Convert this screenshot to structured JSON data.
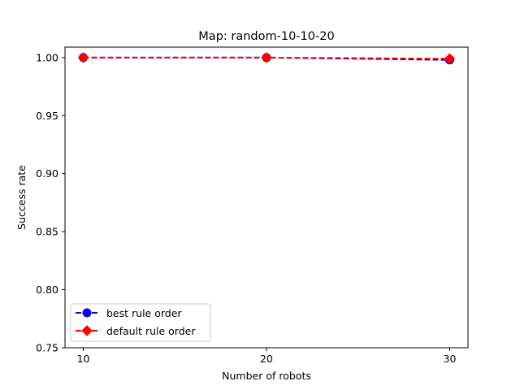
{
  "chart_data": {
    "type": "line",
    "title": "Map: random-10-10-20",
    "xlabel": "Number of robots",
    "ylabel": "Success rate",
    "x": [
      10,
      20,
      30
    ],
    "xlim": [
      9,
      31
    ],
    "ylim": [
      0.75,
      1.009
    ],
    "x_ticks": [
      "10",
      "20",
      "30"
    ],
    "y_ticks": [
      "0.75",
      "0.80",
      "0.85",
      "0.90",
      "0.95",
      "1.00"
    ],
    "y_tick_values": [
      0.75,
      0.8,
      0.85,
      0.9,
      0.95,
      1.0
    ],
    "grid": false,
    "legend_position": "lower-left",
    "series": [
      {
        "name": "best rule order",
        "values": [
          1.0,
          1.0,
          0.998
        ],
        "color": "#0000ff",
        "marker": "circle",
        "line_style": "dashed"
      },
      {
        "name": "default rule order",
        "values": [
          1.0,
          1.0,
          0.999
        ],
        "color": "#ff0000",
        "marker": "diamond",
        "line_style": "dashed"
      }
    ]
  }
}
